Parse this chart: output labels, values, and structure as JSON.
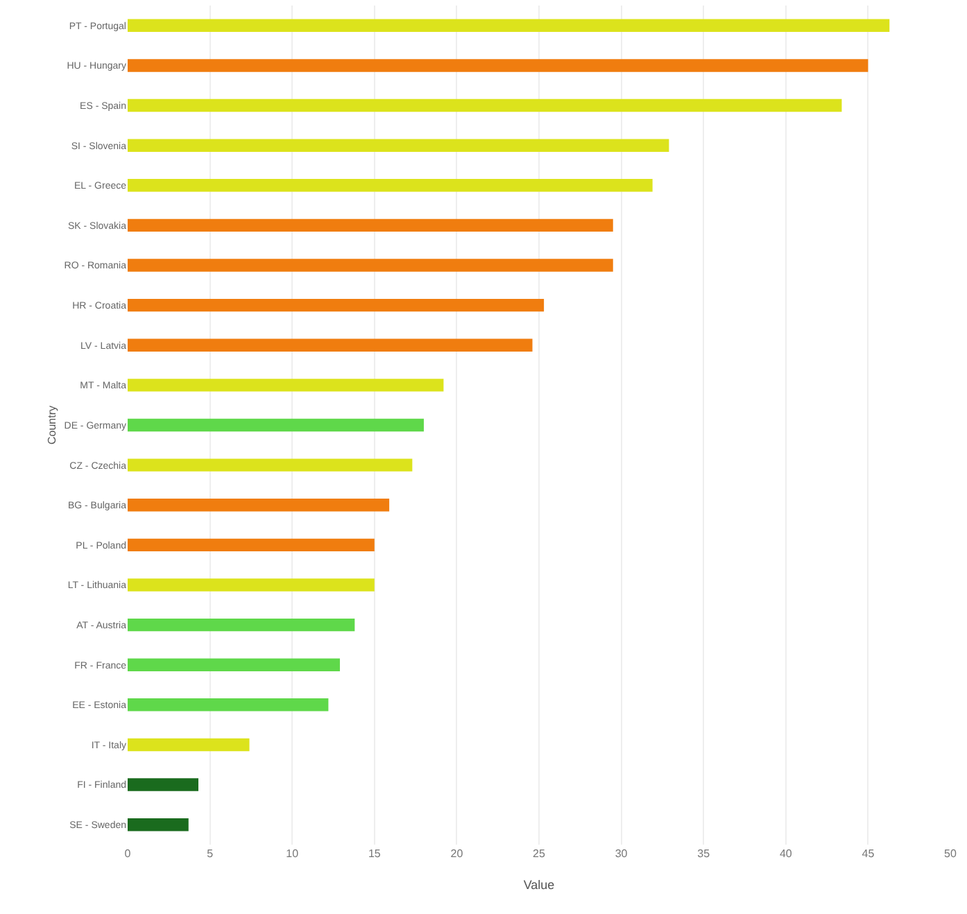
{
  "chart_data": {
    "type": "bar",
    "orientation": "horizontal",
    "xlabel": "Value",
    "ylabel": "Country",
    "categories": [
      "PT - Portugal",
      "HU - Hungary",
      "ES - Spain",
      "SI - Slovenia",
      "EL - Greece",
      "SK - Slovakia",
      "RO - Romania",
      "HR - Croatia",
      "LV - Latvia",
      "MT - Malta",
      "DE - Germany",
      "CZ - Czechia",
      "BG - Bulgaria",
      "PL - Poland",
      "LT - Lithuania",
      "AT - Austria",
      "FR - France",
      "EE - Estonia",
      "IT - Italy",
      "FI - Finland",
      "SE - Sweden"
    ],
    "values": [
      46.3,
      45.0,
      43.4,
      32.9,
      31.9,
      29.5,
      29.5,
      25.3,
      24.6,
      19.2,
      18.0,
      17.3,
      15.9,
      15.0,
      15.0,
      13.8,
      12.9,
      12.2,
      7.4,
      4.3,
      3.7
    ],
    "colors": [
      "#dce31c",
      "#f07d0f",
      "#dce31c",
      "#dce31c",
      "#dce31c",
      "#f07d0f",
      "#f07d0f",
      "#f07d0f",
      "#f07d0f",
      "#dce31c",
      "#5fd84a",
      "#dce31c",
      "#f07d0f",
      "#f07d0f",
      "#dce31c",
      "#5fd84a",
      "#5fd84a",
      "#5fd84a",
      "#dce31c",
      "#1a6b1e",
      "#1a6b1e"
    ],
    "xlim": [
      0,
      50
    ],
    "xticks": [
      0,
      5,
      10,
      15,
      20,
      25,
      30,
      35,
      40,
      45,
      50
    ],
    "grid": "x"
  }
}
